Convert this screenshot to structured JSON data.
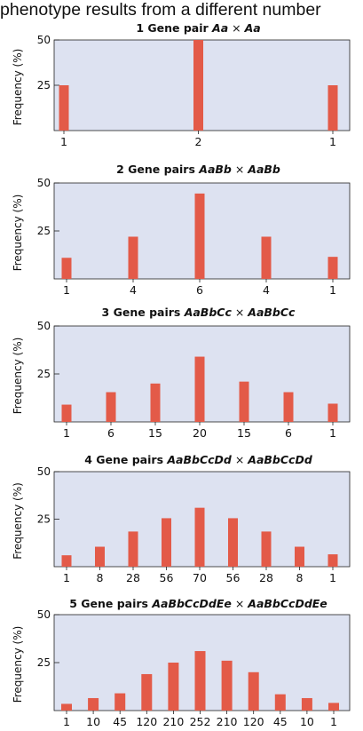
{
  "heading": "phenotype results from a different number",
  "colors": {
    "plot_bg": "#dde2f1",
    "bar": "#e35a48",
    "axis": "#222222"
  },
  "chart_data": [
    {
      "type": "bar",
      "title_prefix": "1 Gene pair",
      "genotype_left": "Aa",
      "cross_symbol": "×",
      "genotype_right": "Aa",
      "ylabel": "Frequency (%)",
      "yticks": [
        "50",
        "25"
      ],
      "ylim": [
        0,
        50
      ],
      "categories": [
        "1",
        "2",
        "1"
      ],
      "values": [
        25,
        50,
        25
      ]
    },
    {
      "type": "bar",
      "title_prefix": "2 Gene pairs",
      "genotype_left": "AaBb",
      "cross_symbol": "×",
      "genotype_right": "AaBb",
      "ylabel": "Frequency (%)",
      "yticks": [
        "50",
        "25"
      ],
      "ylim": [
        0,
        50
      ],
      "categories": [
        "1",
        "4",
        "6",
        "4",
        "1"
      ],
      "values": [
        11,
        22,
        44.5,
        22,
        11.5
      ]
    },
    {
      "type": "bar",
      "title_prefix": "3 Gene pairs",
      "genotype_left": "AaBbCc",
      "cross_symbol": "×",
      "genotype_right": "AaBbCc",
      "ylabel": "Frequency (%)",
      "yticks": [
        "50",
        "25"
      ],
      "ylim": [
        0,
        50
      ],
      "categories": [
        "1",
        "6",
        "15",
        "20",
        "15",
        "6",
        "1"
      ],
      "values": [
        9,
        15.5,
        20,
        34,
        21,
        15.5,
        9.5
      ]
    },
    {
      "type": "bar",
      "title_prefix": "4 Gene pairs",
      "genotype_left": "AaBbCcDd",
      "cross_symbol": "×",
      "genotype_right": "AaBbCcDd",
      "ylabel": "Frequency (%)",
      "yticks": [
        "50",
        "25"
      ],
      "ylim": [
        0,
        50
      ],
      "categories": [
        "1",
        "8",
        "28",
        "56",
        "70",
        "56",
        "28",
        "8",
        "1"
      ],
      "values": [
        6,
        10.5,
        18.5,
        25.5,
        31,
        25.5,
        18.5,
        10.5,
        6.5
      ]
    },
    {
      "type": "bar",
      "title_prefix": "5 Gene pairs",
      "genotype_left": "AaBbCcDdEe",
      "cross_symbol": "×",
      "genotype_right": "AaBbCcDdEe",
      "ylabel": "Frequency (%)",
      "yticks": [
        "50",
        "25"
      ],
      "ylim": [
        0,
        50
      ],
      "categories": [
        "1",
        "10",
        "45",
        "120",
        "210",
        "252",
        "210",
        "120",
        "45",
        "10",
        "1"
      ],
      "values": [
        3.5,
        6.5,
        9,
        19,
        25,
        31,
        26,
        20,
        8.5,
        6.5,
        4
      ]
    }
  ]
}
